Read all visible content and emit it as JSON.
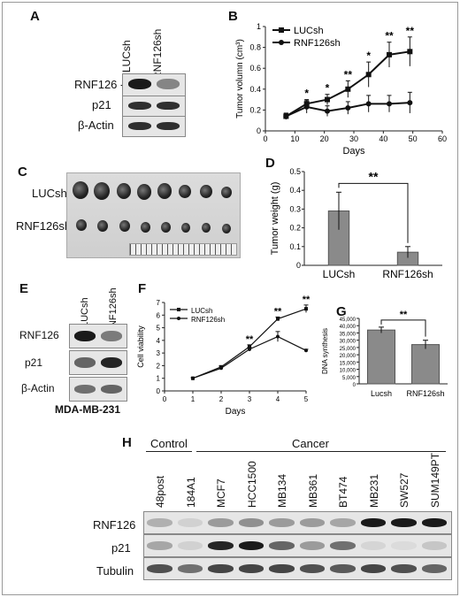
{
  "panels": {
    "A": {
      "letter": "A",
      "columns": [
        "LUCsh",
        "RNF126sh"
      ],
      "rows": [
        "RNF126 -",
        "p21",
        "β-Actin"
      ]
    },
    "B": {
      "letter": "B",
      "legend": [
        "LUCsh",
        "RNF126sh"
      ],
      "xlabel": "Days",
      "ylabel": "Tumor volumn (cm³)",
      "stars": [
        "*",
        "*",
        "**",
        "*",
        "**",
        "**"
      ]
    },
    "C": {
      "letter": "C",
      "rows": [
        "LUCsh",
        "RNF126sh"
      ]
    },
    "D": {
      "letter": "D",
      "ylabel": "Tumor weight (g)",
      "sig": "**"
    },
    "E": {
      "letter": "E",
      "columns": [
        "LUCsh",
        "RNF126sh"
      ],
      "rows": [
        "RNF126",
        "p21",
        "β-Actin"
      ],
      "cell_line": "MDA-MB-231"
    },
    "F": {
      "letter": "F",
      "legend": [
        "LUCsh",
        "RNF126sh"
      ],
      "ylabel": "Cell viability",
      "xlabel": "Days",
      "stars": [
        "**",
        "**",
        "**"
      ]
    },
    "G": {
      "letter": "G",
      "ylabel": "DNA synthesis",
      "sig": "**"
    },
    "H": {
      "letter": "H",
      "group_control": "Control",
      "group_cancer": "Cancer",
      "lanes": [
        "48post",
        "184A1",
        "MCF7",
        "HCC1500",
        "MB134",
        "MB361",
        "BT474",
        "MB231",
        "SW527",
        "SUM149PT"
      ],
      "rows": [
        "RNF126",
        "p21",
        "Tubulin"
      ]
    }
  },
  "chart_data": [
    {
      "type": "line",
      "panel": "B",
      "xlabel": "Days",
      "ylabel": "Tumor volumn (cm³)",
      "xlim": [
        0,
        60
      ],
      "ylim": [
        0,
        1
      ],
      "xticks": [
        0,
        10,
        20,
        30,
        40,
        50,
        60
      ],
      "yticks": [
        0,
        0.2,
        0.4,
        0.6,
        0.8,
        1
      ],
      "x": [
        7,
        14,
        21,
        28,
        35,
        42,
        49
      ],
      "series": [
        {
          "name": "LUCsh",
          "values": [
            0.14,
            0.26,
            0.3,
            0.4,
            0.54,
            0.73,
            0.76
          ],
          "err": [
            0.03,
            0.04,
            0.05,
            0.08,
            0.12,
            0.12,
            0.14
          ]
        },
        {
          "name": "RNF126sh",
          "values": [
            0.14,
            0.23,
            0.19,
            0.22,
            0.26,
            0.26,
            0.27
          ],
          "err": [
            0.03,
            0.06,
            0.05,
            0.06,
            0.08,
            0.08,
            0.1
          ]
        }
      ],
      "significance": [
        "",
        "*",
        "*",
        "**",
        "*",
        "**",
        "**"
      ],
      "legend": "top-left"
    },
    {
      "type": "bar",
      "panel": "D",
      "categories": [
        "LUCsh",
        "RNF126sh"
      ],
      "values": [
        0.29,
        0.07
      ],
      "err": [
        0.1,
        0.03
      ],
      "ylabel": "Tumor weight (g)",
      "ylim": [
        0,
        0.5
      ],
      "yticks": [
        0,
        0.1,
        0.2,
        0.3,
        0.4,
        0.5
      ],
      "significance": "**"
    },
    {
      "type": "line",
      "panel": "F",
      "xlabel": "Days",
      "ylabel": "Cell viability",
      "xlim": [
        0,
        5
      ],
      "ylim": [
        0,
        7
      ],
      "xticks": [
        0,
        1,
        2,
        3,
        4,
        5
      ],
      "yticks": [
        0,
        1,
        2,
        3,
        4,
        5,
        6,
        7
      ],
      "x": [
        1,
        2,
        3,
        4,
        5
      ],
      "series": [
        {
          "name": "LUCsh",
          "values": [
            1.0,
            1.9,
            3.5,
            5.7,
            6.5
          ],
          "err": [
            0.05,
            0.1,
            0.15,
            0.15,
            0.3
          ]
        },
        {
          "name": "RNF126sh",
          "values": [
            1.0,
            1.8,
            3.3,
            4.3,
            3.2
          ],
          "err": [
            0.05,
            0.1,
            0.15,
            0.4,
            0.1
          ]
        }
      ],
      "significance": [
        "",
        "",
        "**",
        "**",
        "**"
      ],
      "legend": "top-left"
    },
    {
      "type": "bar",
      "panel": "G",
      "categories": [
        "Lucsh",
        "RNF126sh"
      ],
      "values": [
        37000,
        27000
      ],
      "err": [
        2000,
        3000
      ],
      "ylabel": "DNA synthesis",
      "ylim": [
        0,
        45000
      ],
      "yticks": [
        0,
        5000,
        10000,
        15000,
        20000,
        25000,
        30000,
        35000,
        40000,
        45000
      ],
      "yticklabels": [
        "0",
        "5,000",
        "10,000",
        "15,000",
        "20,000",
        "25,000",
        "30,000",
        "35,000",
        "40,000",
        "45,000"
      ],
      "significance": "**"
    }
  ],
  "blots": {
    "A": [
      [
        0.95,
        0.45
      ],
      [
        0.85,
        0.85
      ],
      [
        0.85,
        0.85
      ]
    ],
    "E": [
      [
        0.95,
        0.5
      ],
      [
        0.6,
        0.9
      ],
      [
        0.55,
        0.6
      ]
    ],
    "H": [
      [
        0.25,
        0.1,
        0.35,
        0.4,
        0.35,
        0.35,
        0.3,
        0.95,
        0.95,
        0.95
      ],
      [
        0.3,
        0.1,
        0.9,
        0.95,
        0.6,
        0.35,
        0.55,
        0.08,
        0.05,
        0.15
      ],
      [
        0.7,
        0.55,
        0.75,
        0.75,
        0.75,
        0.7,
        0.65,
        0.75,
        0.7,
        0.6
      ]
    ]
  }
}
